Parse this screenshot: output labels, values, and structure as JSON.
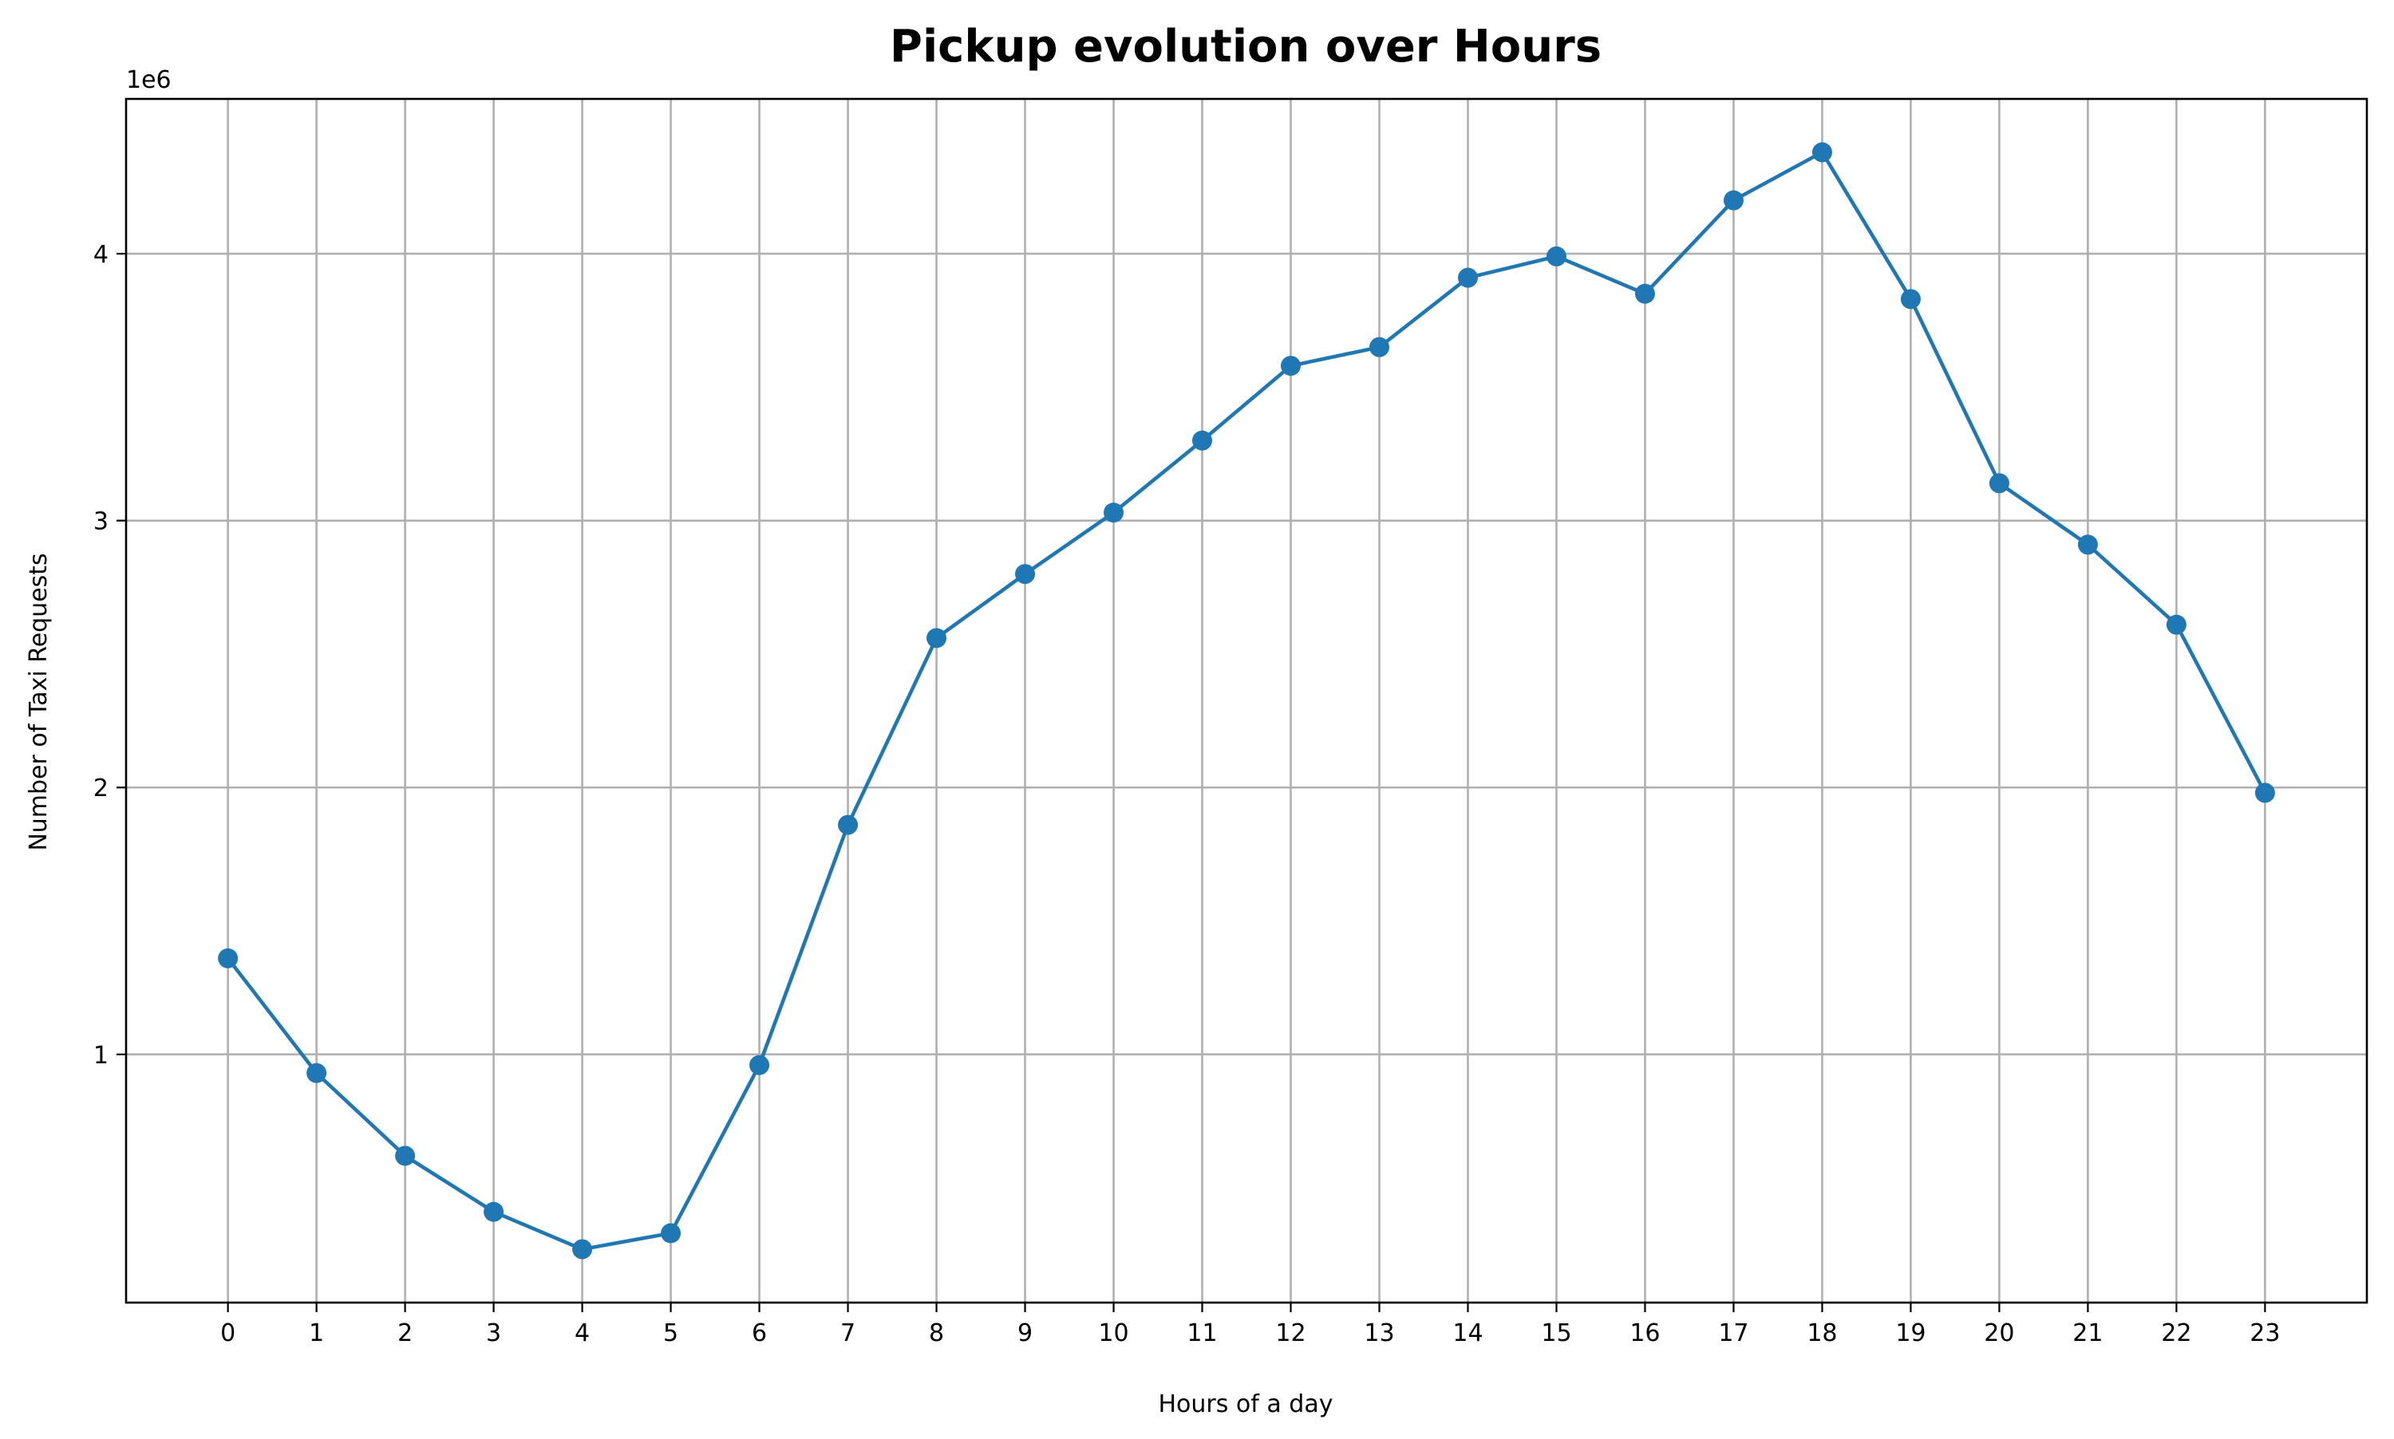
{
  "chart_data": {
    "type": "line",
    "title": "Pickup evolution over Hours",
    "xlabel": "Hours of a day",
    "ylabel": "Number of Taxi Requests",
    "y_offset_label": "1e6",
    "x": [
      0,
      1,
      2,
      3,
      4,
      5,
      6,
      7,
      8,
      9,
      10,
      11,
      12,
      13,
      14,
      15,
      16,
      17,
      18,
      19,
      20,
      21,
      22,
      23
    ],
    "x_tick_labels": [
      "0",
      "1",
      "2",
      "3",
      "4",
      "5",
      "6",
      "7",
      "8",
      "9",
      "10",
      "11",
      "12",
      "13",
      "14",
      "15",
      "16",
      "17",
      "18",
      "19",
      "20",
      "21",
      "22",
      "23"
    ],
    "y_ticks": [
      1,
      2,
      3,
      4
    ],
    "y_tick_labels": [
      "1",
      "2",
      "3",
      "4"
    ],
    "xlim": [
      -1.15,
      24.15
    ],
    "ylim": [
      0.07,
      4.58
    ],
    "grid": true,
    "series": [
      {
        "values": [
          1.36,
          0.93,
          0.62,
          0.41,
          0.27,
          0.33,
          0.96,
          1.86,
          2.56,
          2.8,
          3.03,
          3.3,
          3.58,
          3.65,
          3.91,
          3.99,
          3.85,
          4.2,
          4.38,
          3.83,
          3.14,
          2.91,
          2.61,
          1.98
        ],
        "color": "#1f77b4"
      }
    ]
  }
}
